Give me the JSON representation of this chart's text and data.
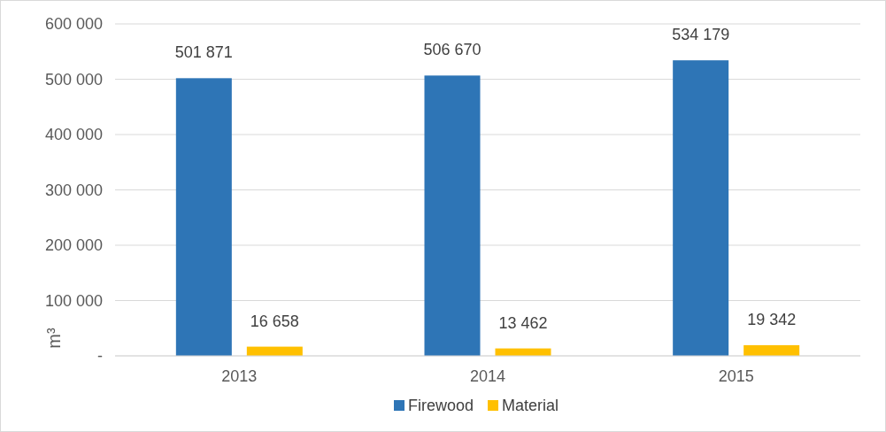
{
  "chart_data": {
    "type": "bar",
    "categories": [
      "2013",
      "2014",
      "2015"
    ],
    "series": [
      {
        "name": "Firewood",
        "color": "#2e75b6",
        "values": [
          501871,
          506670,
          534179
        ],
        "value_labels": [
          "501 871",
          "506 670",
          "534 179"
        ]
      },
      {
        "name": "Material",
        "color": "#ffc000",
        "values": [
          16658,
          13462,
          19342
        ],
        "value_labels": [
          "16 658",
          "13 462",
          "19 342"
        ]
      }
    ],
    "ylabel": "m³",
    "ylim": [
      0,
      600000
    ],
    "yticks": [
      {
        "value": 0,
        "label": "-"
      },
      {
        "value": 100000,
        "label": "100 000"
      },
      {
        "value": 200000,
        "label": "200 000"
      },
      {
        "value": 300000,
        "label": "300 000"
      },
      {
        "value": 400000,
        "label": "400 000"
      },
      {
        "value": 500000,
        "label": "500 000"
      },
      {
        "value": 600000,
        "label": "600 000"
      }
    ],
    "grid": "y",
    "legend": "bottom"
  }
}
